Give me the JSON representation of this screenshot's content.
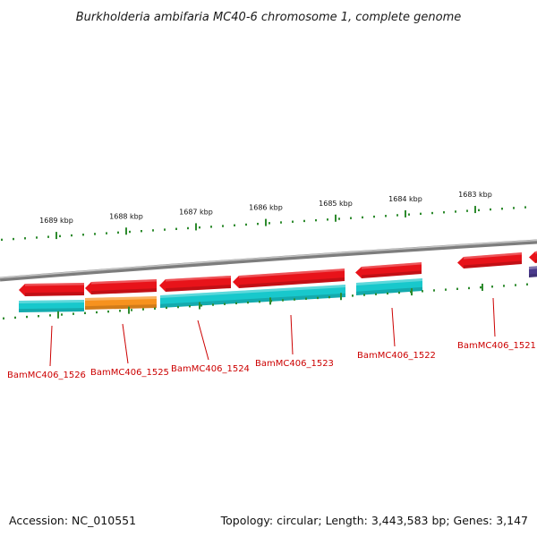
{
  "title": "Burkholderia ambifaria MC40-6 chromosome 1, complete genome",
  "footer": {
    "accession": "Accession: NC_010551",
    "summary": "Topology: circular; Length: 3,443,583 bp; Genes: 3,147"
  },
  "colors": {
    "forward_gene": "#e8131a",
    "reverse_gene": "#18c8cc",
    "highlight_gene": "#f7921e",
    "offscreen_gene": "#4a3a8c",
    "tick": "#2e8b2e",
    "backbone": "#8a8a8a",
    "label": "#cc0000"
  },
  "scale": {
    "labels": [
      "1689 kbp",
      "1688 kbp",
      "1687 kbp",
      "1686 kbp",
      "1685 kbp",
      "1684 kbp",
      "1683 kbp"
    ]
  },
  "genes": [
    {
      "locus": "BamMC406_1526"
    },
    {
      "locus": "BamMC406_1525"
    },
    {
      "locus": "BamMC406_1524"
    },
    {
      "locus": "BamMC406_1523"
    },
    {
      "locus": "BamMC406_1522"
    },
    {
      "locus": "BamMC406_1521"
    }
  ]
}
